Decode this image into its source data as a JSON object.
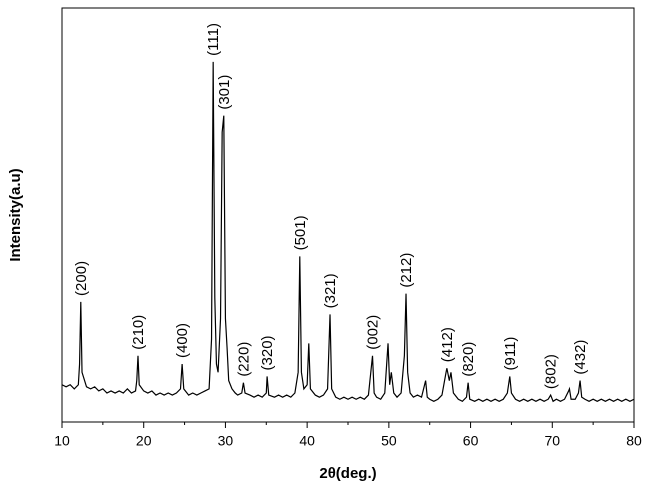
{
  "chart_data": {
    "type": "line",
    "color": "#000000",
    "xlabel": "2θ(deg.)",
    "ylabel": "Intensity(a.u)",
    "xlim": [
      10,
      80
    ],
    "xticks": [
      10,
      20,
      30,
      40,
      50,
      60,
      70,
      80
    ],
    "xminorticks": [
      15,
      25,
      35,
      45,
      55,
      65,
      75
    ],
    "ylim": [
      0,
      100
    ],
    "x": [
      10,
      10.5,
      11,
      11.5,
      12,
      12.15,
      12.3,
      12.45,
      13,
      13.5,
      14,
      14.5,
      15,
      15.5,
      16,
      16.5,
      17,
      17.5,
      18,
      18.5,
      19,
      19.15,
      19.3,
      19.45,
      20,
      20.5,
      21,
      21.5,
      22,
      22.5,
      23,
      23.5,
      24,
      24.5,
      24.7,
      24.9,
      25.5,
      26,
      26.5,
      27,
      27.5,
      28,
      28.3,
      28.5,
      28.7,
      28.9,
      29.1,
      29.4,
      29.6,
      29.8,
      30,
      30.2,
      30.4,
      30.8,
      31.2,
      31.5,
      32,
      32.2,
      32.4,
      33,
      33.5,
      34,
      34.5,
      35,
      35.1,
      35.3,
      36,
      36.5,
      37,
      37.5,
      38,
      38.5,
      38.9,
      39.1,
      39.3,
      39.6,
      40,
      40.2,
      40.4,
      41,
      41.5,
      42,
      42.5,
      42.8,
      43,
      43.5,
      44,
      44.5,
      45,
      45.5,
      46,
      46.5,
      47,
      47.5,
      48,
      48.2,
      48.5,
      49,
      49.5,
      49.9,
      50.1,
      50.3,
      50.6,
      51,
      51.5,
      51.9,
      52.1,
      52.3,
      52.6,
      53,
      53.5,
      54,
      54.5,
      54.7,
      55,
      55.5,
      56,
      56.5,
      57,
      57.1,
      57.4,
      57.6,
      57.9,
      58.5,
      59,
      59.5,
      59.7,
      59.9,
      60.5,
      61,
      61.5,
      62,
      62.5,
      63,
      63.5,
      64,
      64.5,
      64.8,
      65,
      65.5,
      66,
      66.5,
      67,
      67.5,
      68,
      68.5,
      69,
      69.5,
      69.8,
      70.1,
      70.5,
      71,
      71.5,
      72,
      72.1,
      72.3,
      72.8,
      73.2,
      73.4,
      73.6,
      74,
      74.5,
      75,
      75.5,
      76,
      76.5,
      77,
      77.5,
      78,
      78.5,
      79,
      79.5,
      80
    ],
    "values": [
      9,
      8.5,
      9,
      8,
      9,
      14,
      29,
      12,
      8.5,
      8,
      8.5,
      7.5,
      8,
      7,
      7.5,
      7,
      7.5,
      7,
      8,
      7,
      7.5,
      10,
      16,
      9,
      7.5,
      7,
      7.5,
      6.5,
      7,
      6.5,
      7,
      6.5,
      7,
      8,
      14,
      8,
      6.5,
      7,
      6.5,
      7,
      7.5,
      8,
      20,
      87,
      30,
      14,
      12,
      25,
      70,
      74,
      25,
      18,
      10,
      8,
      7,
      6.5,
      7,
      9.5,
      7,
      6.5,
      6,
      6.5,
      6,
      7,
      11,
      6.5,
      6,
      6.5,
      6,
      6.5,
      6,
      7,
      12,
      40,
      12,
      8,
      9,
      19,
      8,
      6.5,
      6,
      6.5,
      8,
      26,
      8,
      6,
      5.5,
      6,
      5.5,
      6,
      5.5,
      6,
      5.5,
      6.5,
      16,
      7,
      6,
      5.5,
      7,
      19,
      9,
      12,
      7,
      6,
      7,
      16,
      31,
      12,
      7,
      6,
      6.5,
      6,
      10,
      6,
      5.5,
      5,
      5.5,
      6.5,
      12,
      13,
      10,
      12,
      7,
      5.5,
      5,
      6,
      9.5,
      5.5,
      5,
      5.5,
      5,
      5.5,
      5,
      5.5,
      5,
      5.5,
      7,
      11,
      7,
      5.5,
      5,
      5.5,
      5,
      5.5,
      5,
      5.5,
      5,
      5.5,
      6.5,
      5,
      5.5,
      5,
      5.5,
      7.5,
      8,
      5.5,
      5.5,
      7,
      10,
      6,
      5.5,
      5,
      5.5,
      5,
      5.5,
      5,
      5.5,
      5,
      5.5,
      5,
      5.5,
      5,
      5.5
    ],
    "annotations": [
      {
        "text": "(200)",
        "x": 12.3
      },
      {
        "text": "(210)",
        "x": 19.3
      },
      {
        "text": "(400)",
        "x": 24.7
      },
      {
        "text": "(111)",
        "x": 28.5
      },
      {
        "text": "(301)",
        "x": 29.8
      },
      {
        "text": "(220)",
        "x": 32.2
      },
      {
        "text": "(320)",
        "x": 35.1
      },
      {
        "text": "(501)",
        "x": 39.1
      },
      {
        "text": "(321)",
        "x": 42.8
      },
      {
        "text": "(002)",
        "x": 48.0
      },
      {
        "text": "(212)",
        "x": 52.1
      },
      {
        "text": "(412)",
        "x": 57.1
      },
      {
        "text": "(820)",
        "x": 59.7
      },
      {
        "text": "(911)",
        "x": 64.8
      },
      {
        "text": "(802)",
        "x": 69.8
      },
      {
        "text": "(432)",
        "x": 73.4
      }
    ]
  }
}
